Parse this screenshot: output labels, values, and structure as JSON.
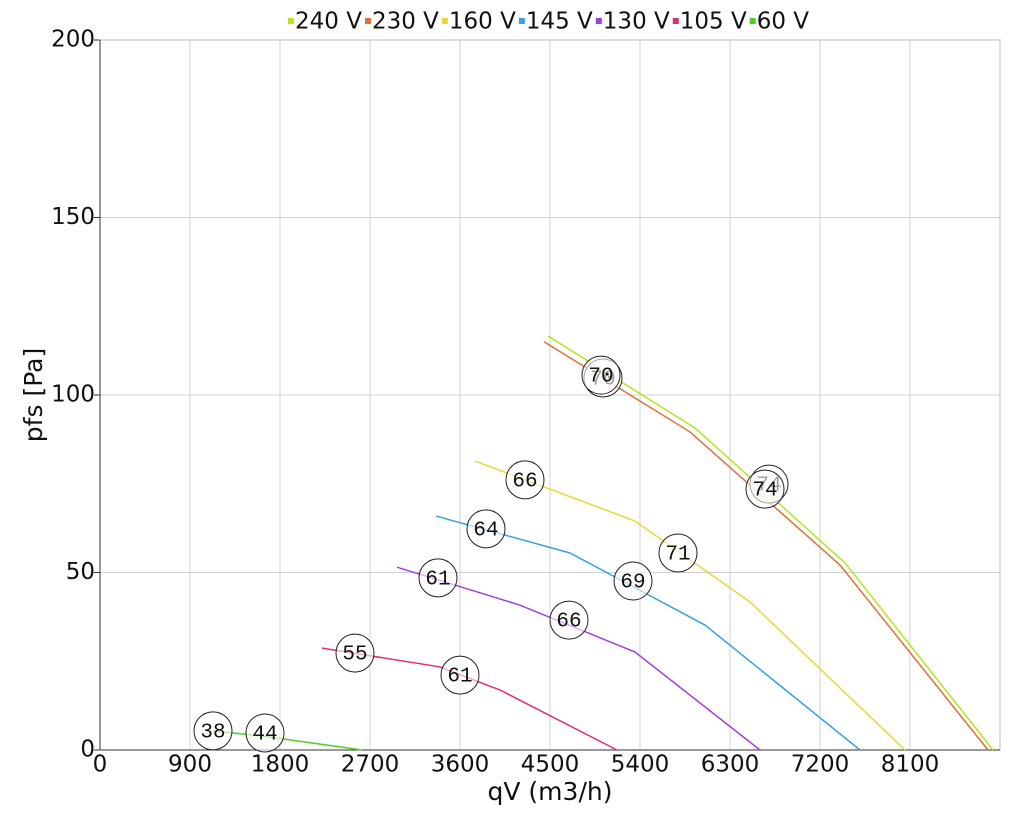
{
  "chart_data": {
    "type": "line",
    "x_label": "qV (m3/h)",
    "y_label": "pfs [Pa]",
    "xlim": [
      0,
      9000
    ],
    "xticks": [
      0,
      900,
      1800,
      2700,
      3600,
      4500,
      5400,
      6300,
      7200,
      8100
    ],
    "ylim": [
      0,
      200
    ],
    "yticks": [
      0,
      50,
      100,
      150,
      200
    ],
    "grid": true,
    "legend": "top",
    "series": [
      {
        "name": "240 V",
        "color": "#b5e61d",
        "x": [
          4480,
          5950,
          7450,
          8930
        ],
        "values": [
          116.6,
          90.7,
          52.7,
          0
        ],
        "point_labels": [
          {
            "x": 5030,
            "y": 104.8,
            "label": 70
          },
          {
            "x": 6690,
            "y": 74.9,
            "label": 74
          }
        ]
      },
      {
        "name": "230 V",
        "color": "#e0703a",
        "x": [
          4440,
          5900,
          7400,
          8880
        ],
        "values": [
          115,
          89.6,
          52.1,
          0
        ],
        "point_labels": [
          {
            "x": 5010,
            "y": 105.6,
            "label": 70
          },
          {
            "x": 6650,
            "y": 73.5,
            "label": 74
          }
        ]
      },
      {
        "name": "160 V",
        "color": "#e8d83a",
        "x": [
          3750,
          5350,
          6500,
          8050
        ],
        "values": [
          81.4,
          64.5,
          41.7,
          0
        ],
        "point_labels": [
          {
            "x": 4250,
            "y": 76.1,
            "label": 66
          },
          {
            "x": 5780,
            "y": 55.5,
            "label": 71
          }
        ]
      },
      {
        "name": "145 V",
        "color": "#3aa0e0",
        "x": [
          3360,
          4700,
          6050,
          7600
        ],
        "values": [
          65.9,
          55.5,
          35.2,
          0
        ],
        "point_labels": [
          {
            "x": 3860,
            "y": 62.3,
            "label": 64
          },
          {
            "x": 5330,
            "y": 47.6,
            "label": 69
          }
        ]
      },
      {
        "name": "130 V",
        "color": "#a040e0",
        "x": [
          2970,
          4200,
          5350,
          6600
        ],
        "values": [
          51.5,
          40.8,
          27.6,
          0
        ],
        "point_labels": [
          {
            "x": 3380,
            "y": 48.5,
            "label": 61
          },
          {
            "x": 4690,
            "y": 36.6,
            "label": 66
          }
        ]
      },
      {
        "name": "105 V",
        "color": "#e0306a",
        "x": [
          2220,
          3400,
          4000,
          5170
        ],
        "values": [
          28.7,
          23.4,
          16.9,
          0
        ],
        "point_labels": [
          {
            "x": 2550,
            "y": 27.3,
            "label": 55
          },
          {
            "x": 3600,
            "y": 21.1,
            "label": 61
          }
        ]
      },
      {
        "name": "60 V",
        "color": "#50d020",
        "x": [
          1130,
          1630,
          2620
        ],
        "values": [
          5.4,
          3.9,
          0
        ],
        "point_labels": [
          {
            "x": 1130,
            "y": 5.4,
            "label": 38
          },
          {
            "x": 1650,
            "y": 4.8,
            "label": 44
          }
        ]
      }
    ]
  }
}
